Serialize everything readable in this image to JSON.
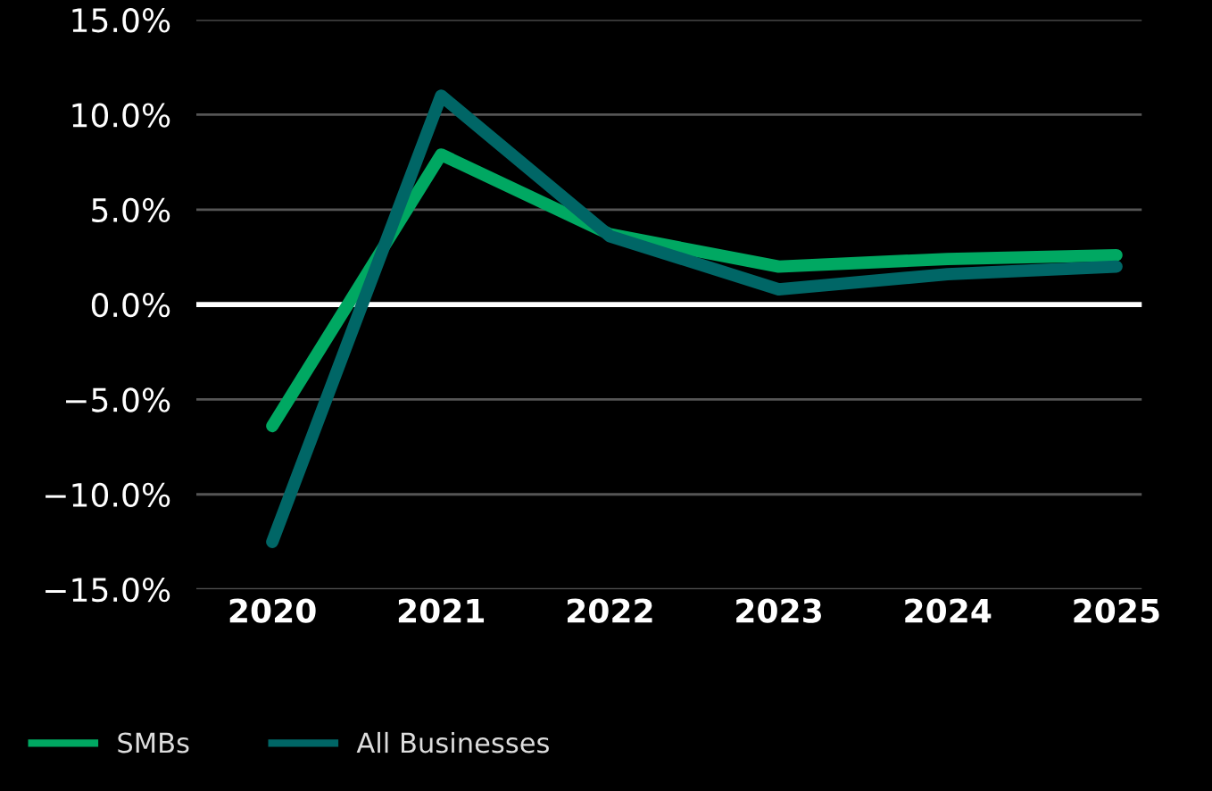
{
  "chart_data": {
    "type": "line",
    "categories": [
      "2020",
      "2021",
      "2022",
      "2023",
      "2024",
      "2025"
    ],
    "series": [
      {
        "name": "SMBs",
        "color": "#00a862",
        "values": [
          -6.4,
          7.9,
          3.7,
          2.0,
          2.4,
          2.6
        ]
      },
      {
        "name": "All Businesses",
        "color": "#006666",
        "values": [
          -12.5,
          11.0,
          3.6,
          0.8,
          1.6,
          2.0
        ]
      }
    ],
    "ylim": [
      -15,
      15
    ],
    "yticks": [
      {
        "value": -15,
        "label": "−15.0%"
      },
      {
        "value": -10,
        "label": "−10.0%"
      },
      {
        "value": -5,
        "label": "−5.0%"
      },
      {
        "value": 0,
        "label": "0.0%"
      },
      {
        "value": 5,
        "label": "5.0%"
      },
      {
        "value": 10,
        "label": "10.0%"
      },
      {
        "value": 15,
        "label": "15.0%"
      }
    ],
    "ref_lines": [
      {
        "axis": "y",
        "value": 0,
        "color": "#ffffff",
        "line_style": "solid"
      }
    ],
    "grid": "y",
    "legend": "bottom left",
    "marker": "none",
    "line_style": "solid"
  }
}
